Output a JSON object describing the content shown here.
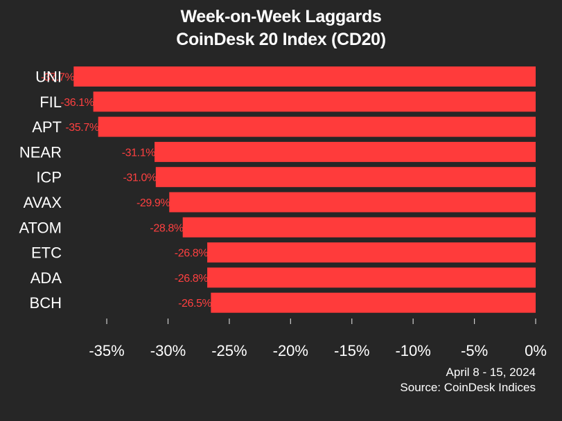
{
  "chart_data": {
    "type": "bar",
    "orientation": "horizontal",
    "title": "Week-on-Week Laggards",
    "subtitle": "CoinDesk 20 Index (CD20)",
    "categories": [
      "UNI",
      "FIL",
      "APT",
      "NEAR",
      "ICP",
      "AVAX",
      "ATOM",
      "ETC",
      "ADA",
      "BCH"
    ],
    "values": [
      -37.7,
      -36.1,
      -35.7,
      -31.1,
      -31.0,
      -29.9,
      -28.8,
      -26.8,
      -26.8,
      -26.5
    ],
    "value_labels": [
      "-37.7%",
      "-36.1%",
      "-35.7%",
      "-31.1%",
      "-31.0%",
      "-29.9%",
      "-28.8%",
      "-26.8%",
      "-26.8%",
      "-26.5%"
    ],
    "xlim": [
      -38,
      0
    ],
    "xticks": [
      -35,
      -30,
      -25,
      -20,
      -15,
      -10,
      -5,
      0
    ],
    "xtick_labels": [
      "-35%",
      "-30%",
      "-25%",
      "-20%",
      "-15%",
      "-10%",
      "-5%",
      "0%"
    ],
    "xlabel": "",
    "ylabel": "",
    "grid": false,
    "legend": "none",
    "bar_color": "#ff3b3b",
    "label_color": "#ff4040",
    "background_color": "#262626"
  },
  "footer": {
    "date_range": "April 8 - 15, 2024",
    "source": "Source: CoinDesk Indices"
  }
}
